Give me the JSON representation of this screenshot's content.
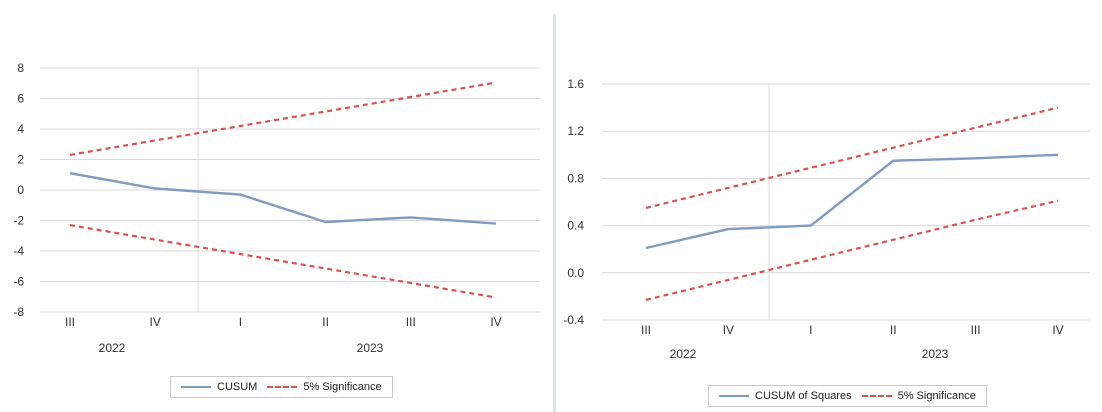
{
  "colors": {
    "cusum": "#7f9bbf",
    "significance": "#d9534f",
    "grid": "#d9d9d9",
    "divider": "#dce4ee"
  },
  "chart_data": [
    {
      "type": "line",
      "quarters": [
        "III",
        "IV",
        "I",
        "II",
        "III",
        "IV"
      ],
      "years": [
        "2022",
        "2023"
      ],
      "ylim": [
        -8,
        8
      ],
      "yticks": [
        "8",
        "6",
        "4",
        "2",
        "0",
        "-2",
        "-4",
        "-6",
        "-8"
      ],
      "grid": true,
      "legend_position": "bottom",
      "series": [
        {
          "name": "CUSUM",
          "style": "solid",
          "values": [
            1.1,
            0.1,
            -0.3,
            -2.1,
            -1.8,
            -2.2
          ]
        },
        {
          "name": "5% Significance",
          "style": "dashed",
          "values": [
            2.3,
            3.25,
            4.2,
            5.15,
            6.1,
            7.05
          ]
        },
        {
          "name": "5% Significance",
          "style": "dashed",
          "values": [
            -2.3,
            -3.25,
            -4.2,
            -5.15,
            -6.1,
            -7.05
          ]
        }
      ]
    },
    {
      "type": "line",
      "quarters": [
        "III",
        "IV",
        "I",
        "II",
        "III",
        "IV"
      ],
      "years": [
        "2022",
        "2023"
      ],
      "ylim": [
        -0.4,
        1.6
      ],
      "yticks": [
        "1.6",
        "1.2",
        "0.8",
        "0.4",
        "0.0",
        "-0.4"
      ],
      "grid": true,
      "legend_position": "bottom",
      "series": [
        {
          "name": "CUSUM of Squares",
          "style": "solid",
          "values": [
            0.21,
            0.37,
            0.4,
            0.95,
            0.97,
            1.0
          ]
        },
        {
          "name": "5% Significance",
          "style": "dashed",
          "values": [
            0.55,
            0.72,
            0.89,
            1.06,
            1.23,
            1.4
          ]
        },
        {
          "name": "5% Significance",
          "style": "dashed",
          "values": [
            -0.23,
            -0.06,
            0.11,
            0.28,
            0.45,
            0.61
          ]
        }
      ]
    }
  ],
  "legends": {
    "left": {
      "line_label": "CUSUM",
      "band_label": "5% Significance"
    },
    "right": {
      "line_label": "CUSUM of Squares",
      "band_label": "5% Significance"
    }
  }
}
